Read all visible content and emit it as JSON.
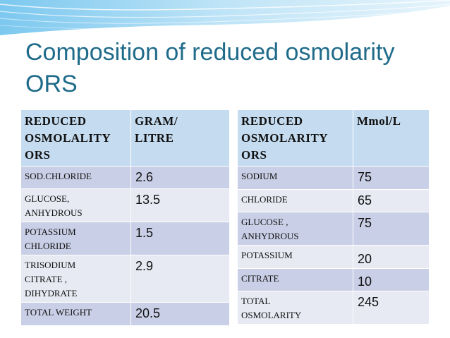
{
  "slide": {
    "title_line1": "Composition of reduced osmolarity",
    "title_line2": "ORS"
  },
  "table_left": {
    "headers": {
      "col1_line1": "REDUCED",
      "col1_line2": "OSMOLALITY",
      "col1_line3": "ORS",
      "col2_line1": "GRAM/",
      "col2_line2": "LITRE"
    },
    "rows": [
      {
        "label_line1": "SOD.CHLORIDE",
        "label_line2": "",
        "label_line3": "",
        "value": "2.6"
      },
      {
        "label_line1": "GLUCOSE,",
        "label_line2": "ANHYDROUS",
        "label_line3": "",
        "value": "13.5"
      },
      {
        "label_line1": "POTASSIUM",
        "label_line2": "CHLORIDE",
        "label_line3": "",
        "value": "1.5"
      },
      {
        "label_line1": "TRISODIUM",
        "label_line2": "CITRATE ,",
        "label_line3": "DIHYDRATE",
        "value": "2.9"
      },
      {
        "label_line1": "TOTAL WEIGHT",
        "label_line2": "",
        "label_line3": "",
        "value": "20.5"
      }
    ]
  },
  "table_right": {
    "headers": {
      "col1_line1": "REDUCED",
      "col1_line2": "OSMOLARITY",
      "col1_line3": "ORS",
      "col2_line1": "Mmol/L"
    },
    "rows": [
      {
        "label_line1": "SODIUM",
        "label_line2": "",
        "value": "75"
      },
      {
        "label_line1": "CHLORIDE",
        "label_line2": "",
        "value": "65"
      },
      {
        "label_line1": "GLUCOSE ,",
        "label_line2": "ANHYDROUS",
        "value": "75"
      },
      {
        "label_line1": "POTASSIUM",
        "label_line2": "",
        "value": "20"
      },
      {
        "label_line1": "CITRATE",
        "label_line2": "",
        "value": "10"
      },
      {
        "label_line1": "TOTAL",
        "label_line2": "OSMOLARITY",
        "value": "245"
      }
    ]
  },
  "colors": {
    "title": "#1f6b8a",
    "header_text": "#3a62aa",
    "highlight_text": "#c0282e"
  }
}
